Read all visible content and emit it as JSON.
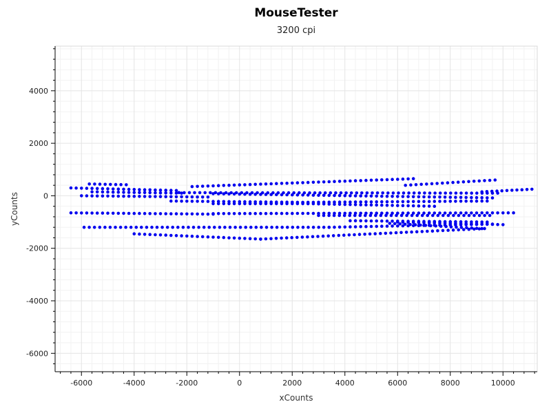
{
  "chart_data": {
    "type": "scatter",
    "title": "MouseTester",
    "subtitle": "3200 cpi",
    "xlabel": "xCounts",
    "ylabel": "yCounts",
    "xlim": [
      -7000,
      11300
    ],
    "ylim": [
      -6700,
      5700
    ],
    "x_ticks": [
      -6000,
      -4000,
      -2000,
      0,
      2000,
      4000,
      6000,
      8000,
      10000
    ],
    "y_ticks": [
      -6000,
      -4000,
      -2000,
      0,
      2000,
      4000
    ],
    "grid": true,
    "marker_color": "#0000ee",
    "strokes": [
      {
        "x_start": -6400,
        "x_end": -2400,
        "y_start": 300,
        "y_end": 200
      },
      {
        "x_start": -5700,
        "x_end": -4300,
        "y_start": 450,
        "y_end": 420
      },
      {
        "x_start": -1800,
        "x_end": 6600,
        "y_start": 350,
        "y_end": 650
      },
      {
        "x_start": 6300,
        "x_end": 9700,
        "y_start": 400,
        "y_end": 600
      },
      {
        "x_start": 9200,
        "x_end": 11100,
        "y_start": 150,
        "y_end": 250
      },
      {
        "x_start": -5600,
        "x_end": -2200,
        "y_start": 150,
        "y_end": 100
      },
      {
        "x_start": -2300,
        "x_end": 9800,
        "y_start": 120,
        "y_end": 100
      },
      {
        "x_start": -6000,
        "x_end": -1200,
        "y_start": 0,
        "y_end": -50
      },
      {
        "x_start": -1000,
        "x_end": 9600,
        "y_start": 80,
        "y_end": -80
      },
      {
        "x_start": -2600,
        "x_end": 2400,
        "y_start": -200,
        "y_end": -250
      },
      {
        "x_start": 2400,
        "x_end": 9400,
        "y_start": -250,
        "y_end": -200
      },
      {
        "x_start": -1000,
        "x_end": 2600,
        "y_start": -300,
        "y_end": -300
      },
      {
        "x_start": 2600,
        "x_end": 7400,
        "y_start": -300,
        "y_end": -400
      },
      {
        "x_start": -6400,
        "x_end": -1000,
        "y_start": -650,
        "y_end": -700
      },
      {
        "x_start": -1000,
        "x_end": 10400,
        "y_start": -680,
        "y_end": -650
      },
      {
        "x_start": 3000,
        "x_end": 9500,
        "y_start": -750,
        "y_end": -750
      },
      {
        "x_start": 4200,
        "x_end": 9400,
        "y_start": -950,
        "y_end": -1000
      },
      {
        "x_start": 5700,
        "x_end": 9200,
        "y_start": -1050,
        "y_end": -1250
      },
      {
        "x_start": 6000,
        "x_end": 10000,
        "y_start": -1000,
        "y_end": -1100
      },
      {
        "x_start": -5900,
        "x_end": 3400,
        "y_start": -1200,
        "y_end": -1200
      },
      {
        "x_start": 3400,
        "x_end": 9600,
        "y_start": -1200,
        "y_end": -1080
      },
      {
        "x_start": -4000,
        "x_end": 800,
        "y_start": -1450,
        "y_end": -1650
      },
      {
        "x_start": 800,
        "x_end": 9300,
        "y_start": -1650,
        "y_end": -1250
      }
    ]
  }
}
